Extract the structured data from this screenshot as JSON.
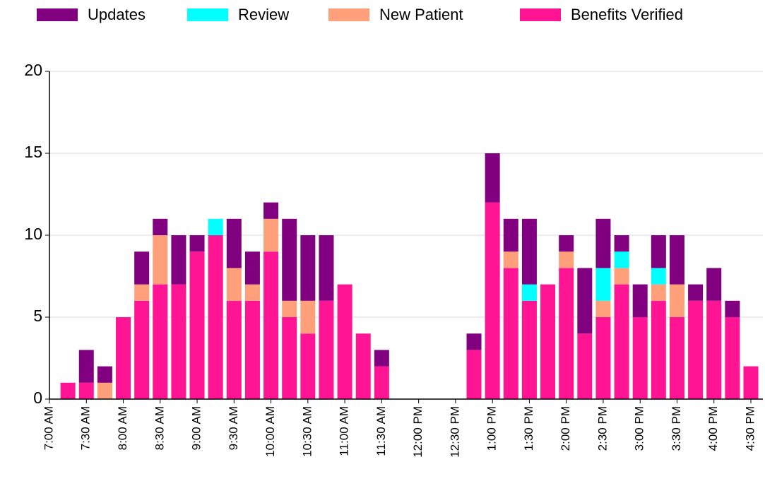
{
  "chart_data": {
    "type": "stacked_bar",
    "categories": [
      "7:00 AM",
      null,
      "7:30 AM",
      null,
      "8:00 AM",
      null,
      "8:30 AM",
      null,
      "9:00 AM",
      null,
      "9:30 AM",
      null,
      "10:00 AM",
      null,
      "10:30 AM",
      null,
      "11:00 AM",
      null,
      "11:30 AM",
      null,
      "12:00 PM",
      null,
      "12:30 PM",
      null,
      "1:00 PM",
      null,
      "1:30 PM",
      null,
      "2:00 PM",
      null,
      "2:30 PM",
      null,
      "3:00 PM",
      null,
      "3:30 PM",
      null,
      "4:00 PM",
      null,
      "4:30 PM"
    ],
    "series": [
      {
        "name": "Updates",
        "color": "#800080",
        "values": [
          0,
          0,
          2,
          1,
          0,
          2,
          1,
          3,
          1,
          0,
          3,
          2,
          1,
          5,
          4,
          4,
          0,
          0,
          1,
          0,
          0,
          0,
          0,
          1,
          3,
          2,
          4,
          0,
          1,
          4,
          3,
          1,
          2,
          2,
          3,
          1,
          2,
          1,
          0
        ]
      },
      {
        "name": "Review",
        "color": "#00ffff",
        "values": [
          0,
          0,
          0,
          0,
          0,
          0,
          0,
          0,
          0,
          1,
          0,
          0,
          0,
          0,
          0,
          0,
          0,
          0,
          0,
          0,
          0,
          0,
          0,
          0,
          0,
          0,
          1,
          0,
          0,
          0,
          2,
          1,
          0,
          1,
          0,
          0,
          0,
          0,
          0
        ]
      },
      {
        "name": "New Patient",
        "color": "#ffa07a",
        "values": [
          0,
          0,
          0,
          1,
          0,
          1,
          3,
          0,
          0,
          0,
          2,
          1,
          2,
          1,
          2,
          0,
          0,
          0,
          0,
          0,
          0,
          0,
          0,
          0,
          0,
          1,
          0,
          0,
          1,
          0,
          1,
          1,
          0,
          1,
          2,
          0,
          0,
          0,
          0
        ]
      },
      {
        "name": "Benefits Verified",
        "color": "#ff1493",
        "values": [
          0,
          1,
          1,
          0,
          5,
          6,
          7,
          7,
          9,
          10,
          6,
          6,
          9,
          5,
          4,
          6,
          7,
          4,
          2,
          0,
          0,
          0,
          0,
          3,
          12,
          8,
          6,
          7,
          8,
          4,
          5,
          7,
          5,
          6,
          5,
          6,
          6,
          5,
          2
        ]
      }
    ],
    "ylim": [
      0,
      20
    ],
    "yticks": [
      0,
      5,
      10,
      15,
      20
    ],
    "grid": true,
    "legend": "top"
  }
}
